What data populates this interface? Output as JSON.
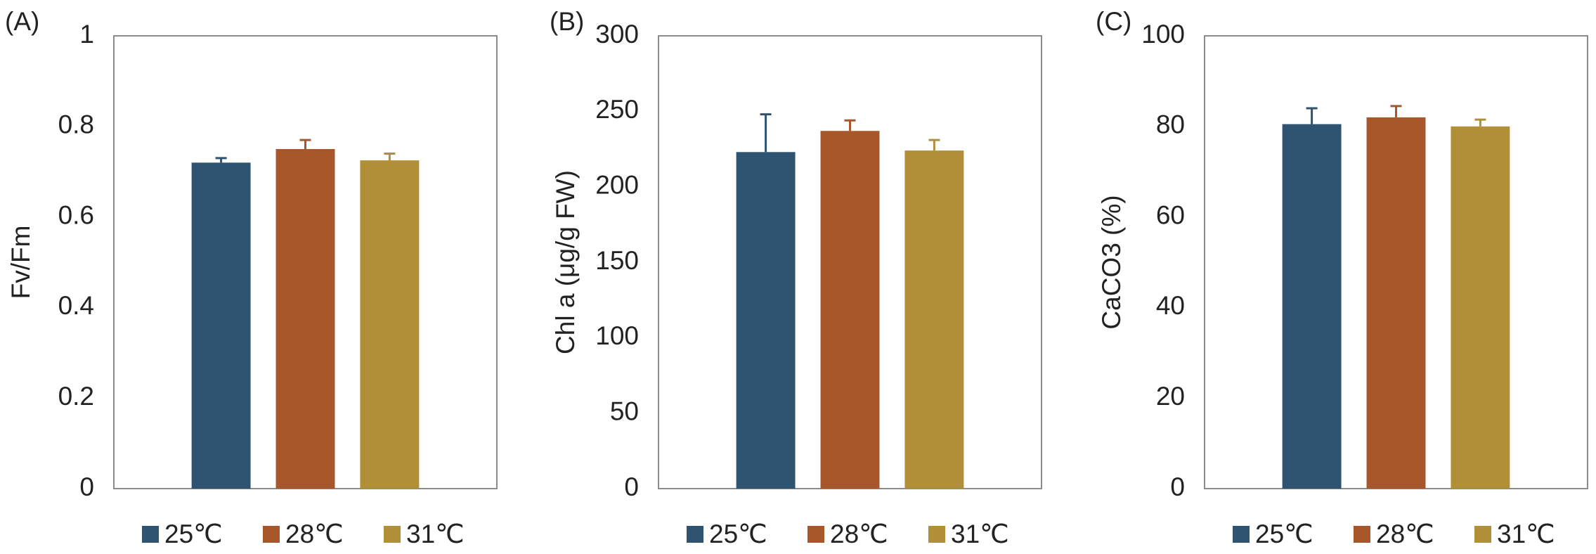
{
  "chart_data": [
    {
      "type": "bar",
      "panel": "(A)",
      "ylabel": "Fv/Fm",
      "ylim": [
        0,
        1
      ],
      "yticks": [
        0,
        0.2,
        0.4,
        0.6,
        0.8,
        1
      ],
      "series": [
        {
          "name": "25℃",
          "color": "#2e5472",
          "values": [
            0.72
          ],
          "errors": [
            0.01
          ]
        },
        {
          "name": "28℃",
          "color": "#a8572a",
          "values": [
            0.75
          ],
          "errors": [
            0.02
          ]
        },
        {
          "name": "31℃",
          "color": "#b08f38",
          "values": [
            0.725
          ],
          "errors": [
            0.015
          ]
        }
      ]
    },
    {
      "type": "bar",
      "panel": "(B)",
      "ylabel": "Chl a (μg/g FW)",
      "ylim": [
        0,
        300
      ],
      "yticks": [
        0,
        50,
        100,
        150,
        200,
        250,
        300
      ],
      "series": [
        {
          "name": "25℃",
          "color": "#2e5472",
          "values": [
            223
          ],
          "errors": [
            25
          ]
        },
        {
          "name": "28℃",
          "color": "#a8572a",
          "values": [
            237
          ],
          "errors": [
            7
          ]
        },
        {
          "name": "31℃",
          "color": "#b08f38",
          "values": [
            224
          ],
          "errors": [
            7
          ]
        }
      ]
    },
    {
      "type": "bar",
      "panel": "(C)",
      "ylabel": "CaCO3 (%)",
      "ylim": [
        0,
        100
      ],
      "yticks": [
        0,
        20,
        40,
        60,
        80,
        100
      ],
      "series": [
        {
          "name": "25℃",
          "color": "#2e5472",
          "values": [
            80.5
          ],
          "errors": [
            3.5
          ]
        },
        {
          "name": "28℃",
          "color": "#a8572a",
          "values": [
            82
          ],
          "errors": [
            2.5
          ]
        },
        {
          "name": "31℃",
          "color": "#b08f38",
          "values": [
            80
          ],
          "errors": [
            1.5
          ]
        }
      ]
    }
  ]
}
